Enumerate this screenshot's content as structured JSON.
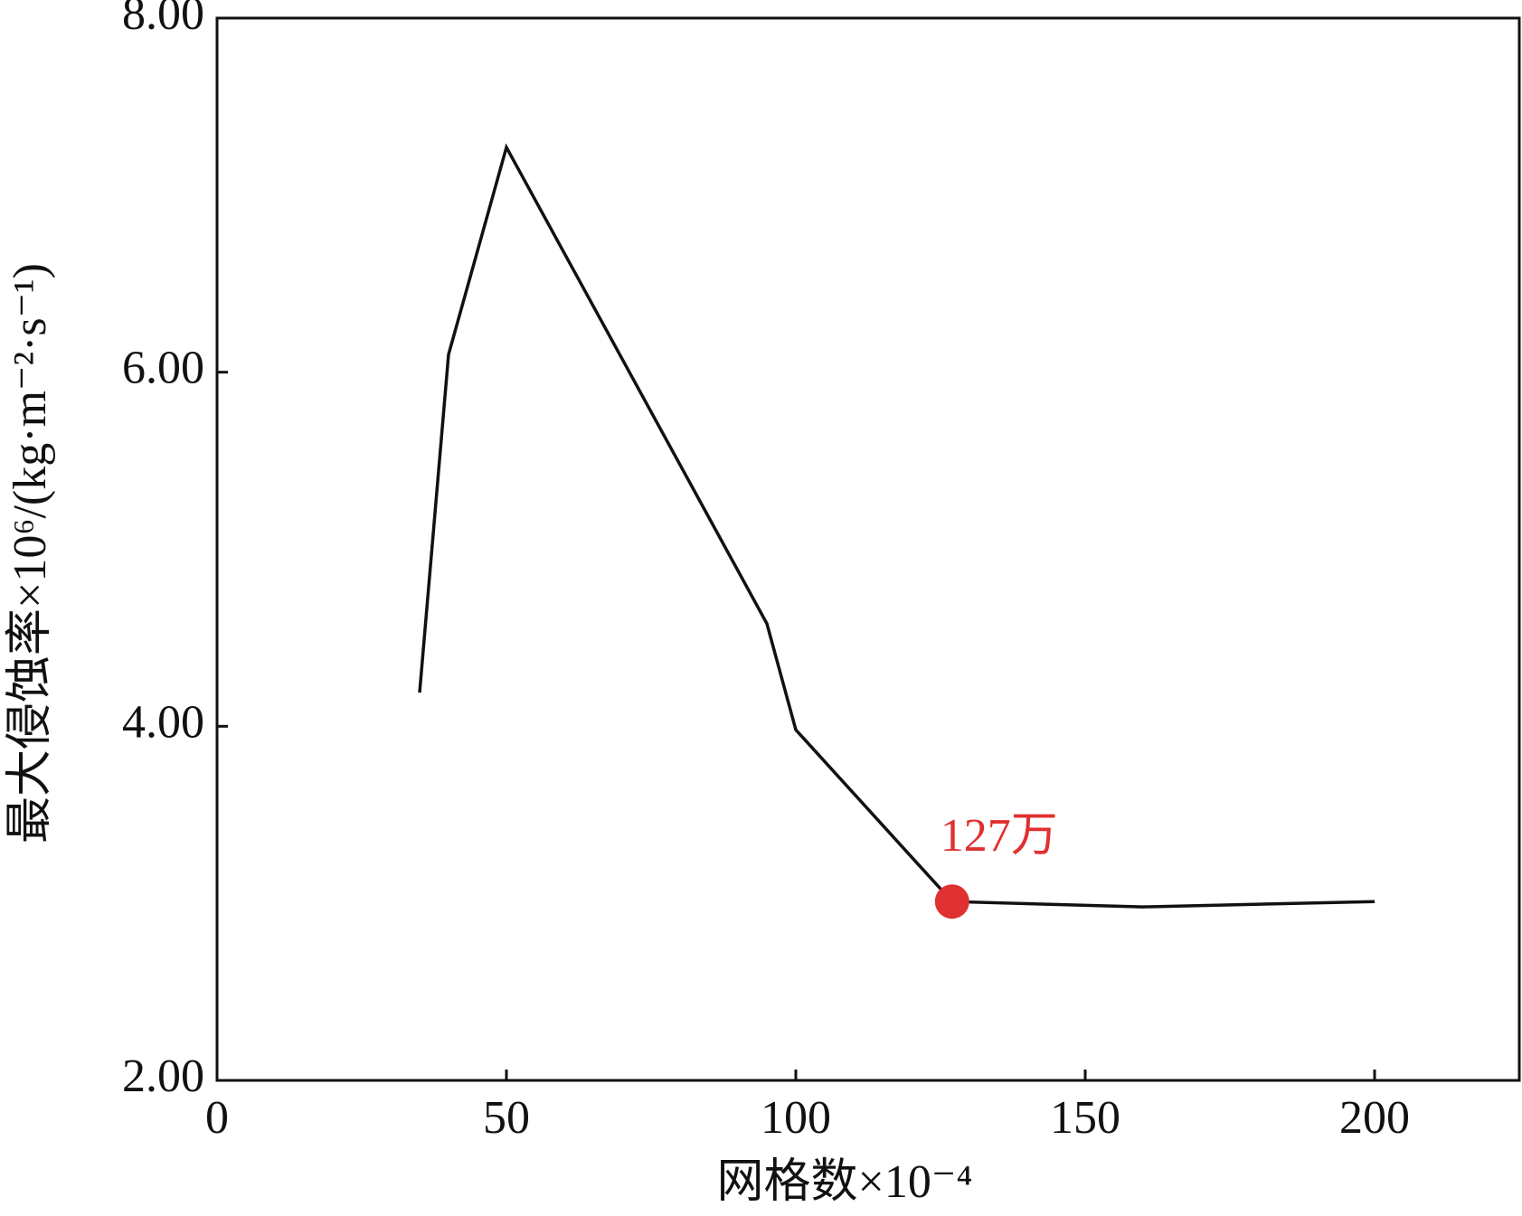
{
  "chart_data": {
    "type": "line",
    "x_label": "网格数×10⁻⁴",
    "y_label": "最大侵蚀率×10⁶/(kg·m⁻²·s⁻¹)",
    "x": [
      35,
      40,
      50,
      95,
      100,
      127,
      160,
      200
    ],
    "series": [
      {
        "color": "#111111",
        "values": [
          4.19,
          6.1,
          7.27,
          4.58,
          3.98,
          3.01,
          2.98,
          3.01
        ]
      }
    ],
    "highlight": {
      "x": 127,
      "y": 3.01,
      "label": "127万",
      "color": "#e03030"
    },
    "xlim": [
      0,
      225
    ],
    "xticks": [
      0,
      50,
      100,
      150,
      200
    ],
    "ylim": [
      2,
      8
    ],
    "yticks": [
      {
        "value": 2,
        "label": "2.00"
      },
      {
        "value": 4,
        "label": "4.00"
      },
      {
        "value": 6,
        "label": "6.00"
      },
      {
        "value": 8,
        "label": "8.00"
      }
    ]
  }
}
